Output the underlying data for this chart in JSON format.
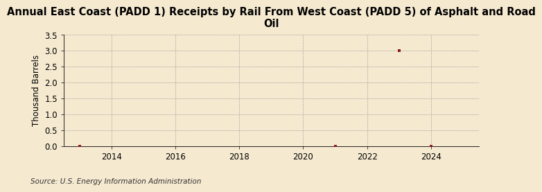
{
  "title": "Annual East Coast (PADD 1) Receipts by Rail From West Coast (PADD 5) of Asphalt and Road\nOil",
  "ylabel": "Thousand Barrels",
  "source": "Source: U.S. Energy Information Administration",
  "background_color": "#f5e9d0",
  "plot_background_color": "#f5e9d0",
  "xlim": [
    2012.5,
    2025.5
  ],
  "ylim": [
    0,
    3.5
  ],
  "yticks": [
    0.0,
    0.5,
    1.0,
    1.5,
    2.0,
    2.5,
    3.0,
    3.5
  ],
  "xticks": [
    2014,
    2016,
    2018,
    2020,
    2022,
    2024
  ],
  "data_x": [
    2013,
    2021,
    2023,
    2024
  ],
  "data_y": [
    0.0,
    0.0,
    3.0,
    0.0
  ],
  "marker_color": "#8b1a1a",
  "grid_color": "#999999",
  "title_fontsize": 10.5,
  "axis_fontsize": 8.5,
  "tick_fontsize": 8.5,
  "source_fontsize": 7.5
}
